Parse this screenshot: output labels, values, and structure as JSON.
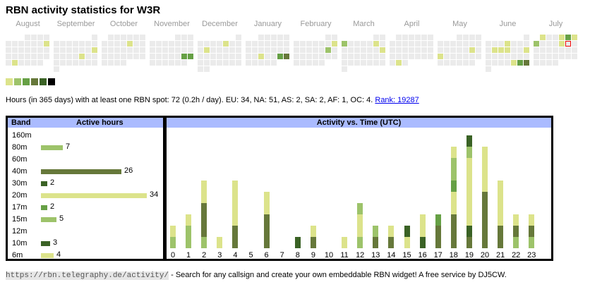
{
  "title": "RBN activity statistics for W3R",
  "colors": [
    "#dce38b",
    "#9dc36a",
    "#66a045",
    "#66783a",
    "#3a6225",
    "#000000"
  ],
  "calendar": {
    "months": [
      {
        "label": "August",
        "offset": 3,
        "days": 31,
        "active": {
          "11": 1,
          "27": 1
        }
      },
      {
        "label": "September",
        "offset": 6,
        "days": 30,
        "active": {
          "15": 1,
          "20": 1
        }
      },
      {
        "label": "October",
        "offset": 1,
        "days": 31,
        "active": {
          "11": 1
        }
      },
      {
        "label": "November",
        "offset": 4,
        "days": 30,
        "active": {
          "23": 3,
          "24": 3
        }
      },
      {
        "label": "December",
        "offset": 6,
        "days": 31,
        "active": {
          "6": 1,
          "10": 1
        }
      },
      {
        "label": "January",
        "offset": 2,
        "days": 31,
        "active": {
          "22": 1,
          "25": 3,
          "26": 4
        }
      },
      {
        "label": "February",
        "offset": 5,
        "days": 28,
        "active": {
          "9": 1,
          "15": 2
        }
      },
      {
        "label": "March",
        "offset": 5,
        "days": 31,
        "active": {
          "3": 2,
          "8": 1,
          "16": 1
        }
      },
      {
        "label": "April",
        "offset": 1,
        "days": 30,
        "active": {
          "29": 1
        }
      },
      {
        "label": "May",
        "offset": 3,
        "days": 31,
        "active": {
          "17": 1,
          "19": 1
        }
      },
      {
        "label": "June",
        "offset": 6,
        "days": 30,
        "active": {
          "5": 1,
          "10": 1,
          "11": 1,
          "12": 1,
          "15": 1,
          "27": 1,
          "28": 3,
          "29": 4
        }
      },
      {
        "label": "July",
        "offset": 1,
        "days": 31,
        "active": {
          "1": 1,
          "4": 1,
          "5": 3,
          "6": 1,
          "7": 2,
          "11": 1
        },
        "today": 12
      }
    ]
  },
  "summary": {
    "text": "Hours (in 365 days) with at least one RBN spot: 72 (0.2h / day). EU: 34, NA: 51, AS: 2, SA: 2, AF: 1, OC: 4.",
    "rank": "Rank: 19287"
  },
  "bands": {
    "header_band": "Band",
    "header_hours": "Active hours",
    "rows": [
      {
        "band": "160m",
        "hours": null,
        "color": 0
      },
      {
        "band": "80m",
        "hours": 7,
        "color": 1
      },
      {
        "band": "60m",
        "hours": null,
        "color": 0
      },
      {
        "band": "40m",
        "hours": 26,
        "color": 3
      },
      {
        "band": "30m",
        "hours": 2,
        "color": 4
      },
      {
        "band": "20m",
        "hours": 34,
        "color": 0
      },
      {
        "band": "17m",
        "hours": 2,
        "color": 2
      },
      {
        "band": "15m",
        "hours": 5,
        "color": 1
      },
      {
        "band": "12m",
        "hours": null,
        "color": 0
      },
      {
        "band": "10m",
        "hours": 3,
        "color": 4
      },
      {
        "band": "6m",
        "hours": 4,
        "color": 0
      }
    ]
  },
  "chart_data": {
    "type": "bar",
    "title": "Activity vs. Time (UTC)",
    "stacked": true,
    "categories": [
      "0",
      "1",
      "2",
      "3",
      "4",
      "5",
      "6",
      "7",
      "8",
      "9",
      "10",
      "11",
      "12",
      "13",
      "14",
      "15",
      "16",
      "17",
      "18",
      "19",
      "20",
      "21",
      "22",
      "23"
    ],
    "segments": [
      [
        [
          1,
          1
        ],
        [
          0,
          1
        ]
      ],
      [
        [
          1,
          2
        ],
        [
          0,
          1
        ]
      ],
      [
        [
          1,
          1
        ],
        [
          3,
          3
        ],
        [
          0,
          2
        ]
      ],
      [
        [
          0,
          1
        ]
      ],
      [
        [
          3,
          2
        ],
        [
          0,
          4
        ]
      ],
      [],
      [
        [
          3,
          3
        ],
        [
          0,
          2
        ]
      ],
      [],
      [
        [
          4,
          1
        ]
      ],
      [
        [
          3,
          1
        ],
        [
          0,
          1
        ]
      ],
      [],
      [
        [
          0,
          1
        ]
      ],
      [
        [
          1,
          1
        ],
        [
          0,
          2
        ],
        [
          1,
          1
        ]
      ],
      [
        [
          3,
          1
        ],
        [
          1,
          1
        ]
      ],
      [
        [
          3,
          1
        ],
        [
          0,
          1
        ]
      ],
      [
        [
          0,
          1
        ],
        [
          4,
          1
        ]
      ],
      [
        [
          4,
          1
        ],
        [
          0,
          2
        ]
      ],
      [
        [
          3,
          2
        ],
        [
          2,
          1
        ]
      ],
      [
        [
          3,
          3
        ],
        [
          0,
          2
        ],
        [
          2,
          1
        ],
        [
          1,
          2
        ],
        [
          0,
          1
        ]
      ],
      [
        [
          3,
          1
        ],
        [
          4,
          1
        ],
        [
          0,
          6
        ],
        [
          1,
          1
        ],
        [
          4,
          1
        ]
      ],
      [
        [
          3,
          5
        ],
        [
          0,
          4
        ]
      ],
      [
        [
          3,
          2
        ],
        [
          0,
          4
        ]
      ],
      [
        [
          1,
          1
        ],
        [
          3,
          1
        ],
        [
          0,
          1
        ]
      ],
      [
        [
          1,
          1
        ],
        [
          3,
          1
        ],
        [
          0,
          1
        ]
      ]
    ]
  },
  "footer": {
    "url": "https://rbn.telegraphy.de/activity/",
    "text": " - Search for any callsign and create your own embeddable RBN widget! A free service by DJ5CW."
  }
}
